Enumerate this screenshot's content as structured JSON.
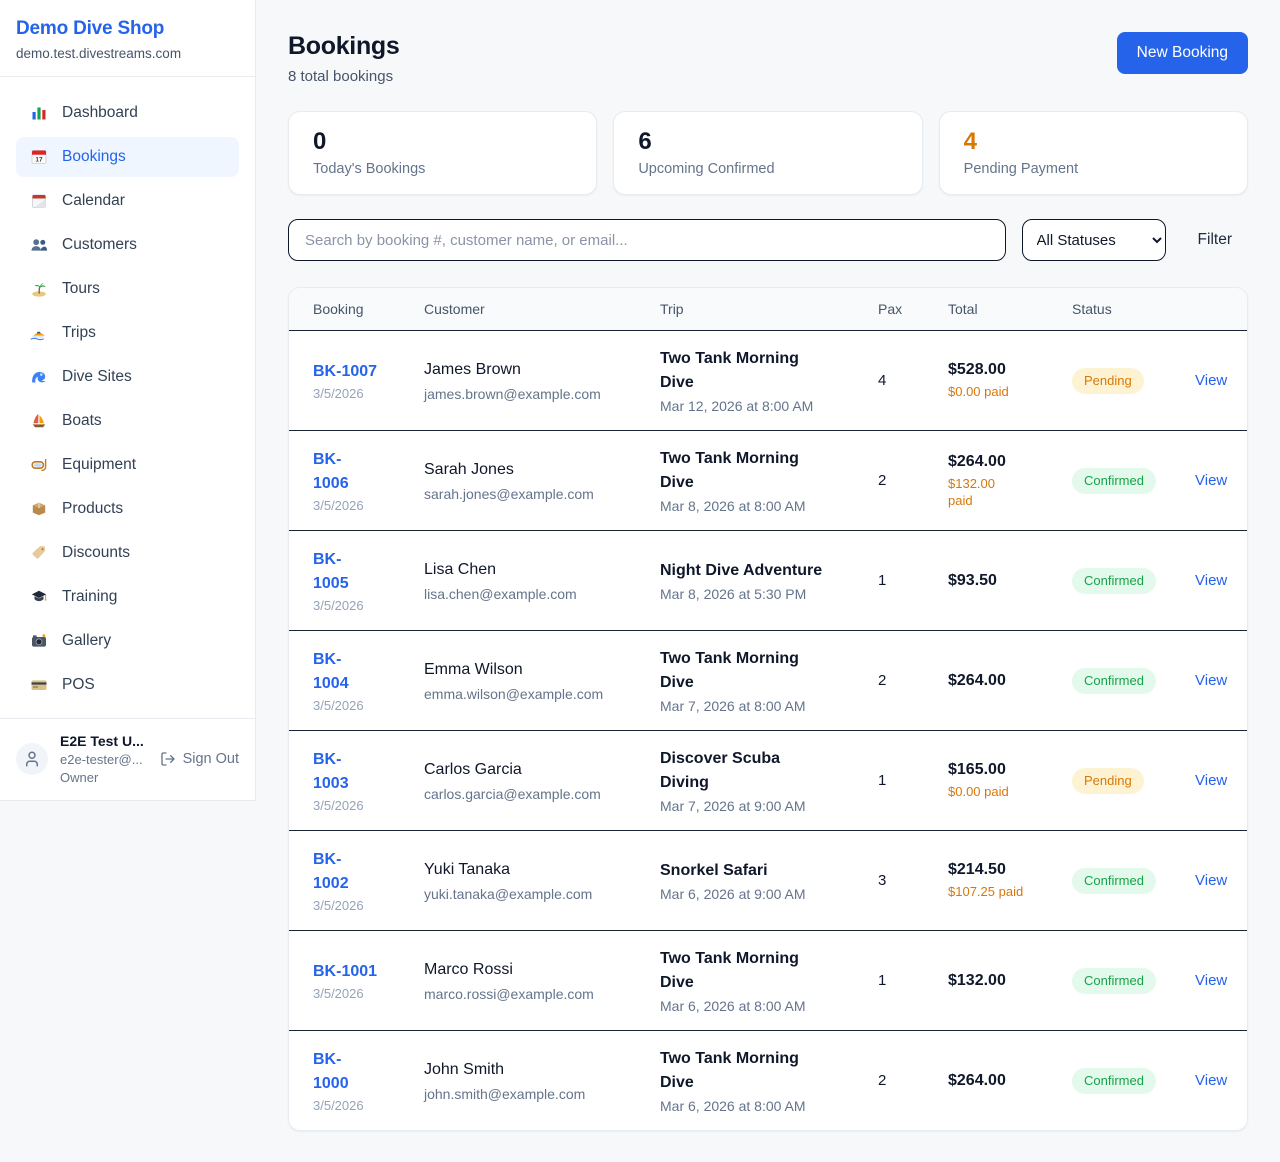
{
  "sidebar": {
    "brand": "Demo Dive Shop",
    "domain": "demo.test.divestreams.com",
    "items": [
      {
        "icon": "bar-chart-icon",
        "label": "Dashboard",
        "active": false
      },
      {
        "icon": "calendar-icon",
        "label": "Bookings",
        "active": true
      },
      {
        "icon": "tearoff-calendar-icon",
        "label": "Calendar",
        "active": false
      },
      {
        "icon": "users-icon",
        "label": "Customers",
        "active": false
      },
      {
        "icon": "island-icon",
        "label": "Tours",
        "active": false
      },
      {
        "icon": "speedboat-icon",
        "label": "Trips",
        "active": false
      },
      {
        "icon": "wave-icon",
        "label": "Dive Sites",
        "active": false
      },
      {
        "icon": "sailboat-icon",
        "label": "Boats",
        "active": false
      },
      {
        "icon": "diving-mask-icon",
        "label": "Equipment",
        "active": false
      },
      {
        "icon": "package-icon",
        "label": "Products",
        "active": false
      },
      {
        "icon": "tag-icon",
        "label": "Discounts",
        "active": false
      },
      {
        "icon": "graduation-cap-icon",
        "label": "Training",
        "active": false
      },
      {
        "icon": "camera-icon",
        "label": "Gallery",
        "active": false
      },
      {
        "icon": "credit-card-icon",
        "label": "POS",
        "active": false
      }
    ],
    "user": {
      "name": "E2E Test U...",
      "email": "e2e-tester@...",
      "role": "Owner",
      "sign_out_label": "Sign Out"
    }
  },
  "header": {
    "title": "Bookings",
    "subtitle": "8 total bookings",
    "new_booking_label": "New Booking"
  },
  "stats": [
    {
      "value": "0",
      "label": "Today's Bookings",
      "color": "#0f172a"
    },
    {
      "value": "6",
      "label": "Upcoming Confirmed",
      "color": "#0f172a"
    },
    {
      "value": "4",
      "label": "Pending Payment",
      "color": "#d97706"
    }
  ],
  "filters": {
    "search_placeholder": "Search by booking #, customer name, or email...",
    "status_selected": "All Statuses",
    "filter_label": "Filter"
  },
  "table": {
    "columns": [
      "Booking",
      "Customer",
      "Trip",
      "Pax",
      "Total",
      "Status"
    ],
    "rows": [
      {
        "id": "BK-1007",
        "date": "3/5/2026",
        "customer": "James Brown",
        "email": "james.brown@example.com",
        "trip": "Two Tank Morning\nDive",
        "trip_date": "Mar 12, 2026 at 8:00 AM",
        "pax": "4",
        "total": "$528.00",
        "paid": "$0.00 paid",
        "status": "Pending",
        "view_label": "View"
      },
      {
        "id": "BK-\n1006",
        "date": "3/5/2026",
        "customer": "Sarah Jones",
        "email": "sarah.jones@example.com",
        "trip": "Two Tank Morning\nDive",
        "trip_date": "Mar 8, 2026 at 8:00 AM",
        "pax": "2",
        "total": "$264.00",
        "paid": "$132.00\npaid",
        "status": "Confirmed",
        "view_label": "View"
      },
      {
        "id": "BK-\n1005",
        "date": "3/5/2026",
        "customer": "Lisa Chen",
        "email": "lisa.chen@example.com",
        "trip": "Night Dive Adventure",
        "trip_date": "Mar 8, 2026 at 5:30 PM",
        "pax": "1",
        "total": "$93.50",
        "paid": "",
        "status": "Confirmed",
        "view_label": "View"
      },
      {
        "id": "BK-\n1004",
        "date": "3/5/2026",
        "customer": "Emma Wilson",
        "email": "emma.wilson@example.com",
        "trip": "Two Tank Morning\nDive",
        "trip_date": "Mar 7, 2026 at 8:00 AM",
        "pax": "2",
        "total": "$264.00",
        "paid": "",
        "status": "Confirmed",
        "view_label": "View"
      },
      {
        "id": "BK-\n1003",
        "date": "3/5/2026",
        "customer": "Carlos Garcia",
        "email": "carlos.garcia@example.com",
        "trip": "Discover Scuba\nDiving",
        "trip_date": "Mar 7, 2026 at 9:00 AM",
        "pax": "1",
        "total": "$165.00",
        "paid": "$0.00 paid",
        "status": "Pending",
        "view_label": "View"
      },
      {
        "id": "BK-\n1002",
        "date": "3/5/2026",
        "customer": "Yuki Tanaka",
        "email": "yuki.tanaka@example.com",
        "trip": "Snorkel Safari",
        "trip_date": "Mar 6, 2026 at 9:00 AM",
        "pax": "3",
        "total": "$214.50",
        "paid": "$107.25 paid",
        "status": "Confirmed",
        "view_label": "View"
      },
      {
        "id": "BK-1001",
        "date": "3/5/2026",
        "customer": "Marco Rossi",
        "email": "marco.rossi@example.com",
        "trip": "Two Tank Morning\nDive",
        "trip_date": "Mar 6, 2026 at 8:00 AM",
        "pax": "1",
        "total": "$132.00",
        "paid": "",
        "status": "Confirmed",
        "view_label": "View"
      },
      {
        "id": "BK-\n1000",
        "date": "3/5/2026",
        "customer": "John Smith",
        "email": "john.smith@example.com",
        "trip": "Two Tank Morning\nDive",
        "trip_date": "Mar 6, 2026 at 8:00 AM",
        "pax": "2",
        "total": "$264.00",
        "paid": "",
        "status": "Confirmed",
        "view_label": "View"
      }
    ]
  },
  "colors": {
    "accent_blue": "#2563eb",
    "pending_text": "#d97706",
    "pending_bg": "#fdf3d3",
    "confirmed_text": "#16a34a",
    "confirmed_bg": "#e3f9eb"
  }
}
